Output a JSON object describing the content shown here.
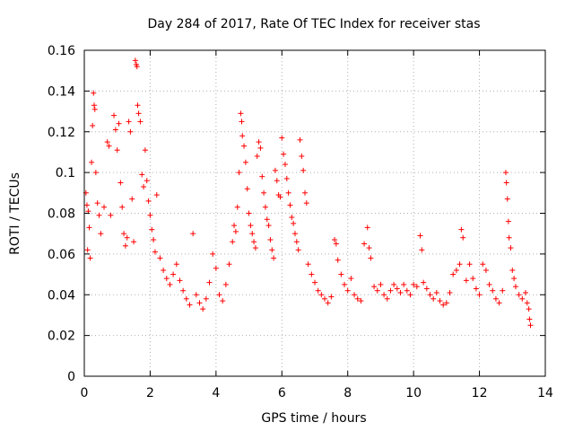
{
  "chart_data": {
    "type": "scatter",
    "title": "Day 284 of 2017, Rate Of TEC Index for receiver stas",
    "xlabel": "GPS time / hours",
    "ylabel": "ROTI / TECUs",
    "xlim": [
      0,
      14
    ],
    "ylim": [
      0,
      0.16
    ],
    "xticks": [
      0,
      2,
      4,
      6,
      8,
      10,
      12,
      14
    ],
    "xtick_labels": [
      "0",
      "2",
      "4",
      "6",
      "8",
      "10",
      "12",
      "14"
    ],
    "yticks": [
      0,
      0.02,
      0.04,
      0.06,
      0.08,
      0.1,
      0.12,
      0.14,
      0.16
    ],
    "ytick_labels": [
      "0",
      "0.02",
      "0.04",
      "0.06",
      "0.08",
      "0.1",
      "0.12",
      "0.14",
      "0.16"
    ],
    "grid": true,
    "marker": "plus",
    "color": "#ff0000",
    "series": [
      {
        "name": "stas",
        "points": [
          [
            0.05,
            0.09
          ],
          [
            0.08,
            0.084
          ],
          [
            0.12,
            0.081
          ],
          [
            0.15,
            0.073
          ],
          [
            0.22,
            0.105
          ],
          [
            0.28,
            0.139
          ],
          [
            0.3,
            0.133
          ],
          [
            0.32,
            0.131
          ],
          [
            0.25,
            0.123
          ],
          [
            0.35,
            0.1
          ],
          [
            0.1,
            0.062
          ],
          [
            0.18,
            0.058
          ],
          [
            0.4,
            0.085
          ],
          [
            0.45,
            0.079
          ],
          [
            0.5,
            0.07
          ],
          [
            0.6,
            0.083
          ],
          [
            0.7,
            0.115
          ],
          [
            0.75,
            0.113
          ],
          [
            0.8,
            0.079
          ],
          [
            0.9,
            0.128
          ],
          [
            0.95,
            0.121
          ],
          [
            1.0,
            0.111
          ],
          [
            1.05,
            0.124
          ],
          [
            1.1,
            0.095
          ],
          [
            1.15,
            0.083
          ],
          [
            1.2,
            0.07
          ],
          [
            1.25,
            0.064
          ],
          [
            1.3,
            0.068
          ],
          [
            1.35,
            0.125
          ],
          [
            1.4,
            0.12
          ],
          [
            1.45,
            0.087
          ],
          [
            1.5,
            0.066
          ],
          [
            1.55,
            0.155
          ],
          [
            1.58,
            0.153
          ],
          [
            1.6,
            0.152
          ],
          [
            1.62,
            0.133
          ],
          [
            1.65,
            0.129
          ],
          [
            1.7,
            0.125
          ],
          [
            1.75,
            0.099
          ],
          [
            1.8,
            0.093
          ],
          [
            1.85,
            0.111
          ],
          [
            1.9,
            0.096
          ],
          [
            1.95,
            0.086
          ],
          [
            2.0,
            0.079
          ],
          [
            2.05,
            0.072
          ],
          [
            2.1,
            0.067
          ],
          [
            2.15,
            0.061
          ],
          [
            2.2,
            0.089
          ],
          [
            2.3,
            0.058
          ],
          [
            2.4,
            0.052
          ],
          [
            2.5,
            0.048
          ],
          [
            2.6,
            0.045
          ],
          [
            2.7,
            0.05
          ],
          [
            2.8,
            0.055
          ],
          [
            2.9,
            0.047
          ],
          [
            3.0,
            0.042
          ],
          [
            3.1,
            0.038
          ],
          [
            3.2,
            0.035
          ],
          [
            3.3,
            0.07
          ],
          [
            3.4,
            0.04
          ],
          [
            3.5,
            0.036
          ],
          [
            3.6,
            0.033
          ],
          [
            3.7,
            0.038
          ],
          [
            3.8,
            0.046
          ],
          [
            3.9,
            0.06
          ],
          [
            4.0,
            0.053
          ],
          [
            4.1,
            0.04
          ],
          [
            4.2,
            0.037
          ],
          [
            4.3,
            0.045
          ],
          [
            4.4,
            0.055
          ],
          [
            4.5,
            0.066
          ],
          [
            4.55,
            0.074
          ],
          [
            4.6,
            0.071
          ],
          [
            4.65,
            0.083
          ],
          [
            4.7,
            0.1
          ],
          [
            4.75,
            0.129
          ],
          [
            4.78,
            0.125
          ],
          [
            4.8,
            0.118
          ],
          [
            4.85,
            0.113
          ],
          [
            4.9,
            0.105
          ],
          [
            4.95,
            0.092
          ],
          [
            5.0,
            0.08
          ],
          [
            5.05,
            0.074
          ],
          [
            5.1,
            0.07
          ],
          [
            5.15,
            0.066
          ],
          [
            5.2,
            0.063
          ],
          [
            5.25,
            0.108
          ],
          [
            5.3,
            0.115
          ],
          [
            5.35,
            0.112
          ],
          [
            5.4,
            0.098
          ],
          [
            5.45,
            0.09
          ],
          [
            5.5,
            0.083
          ],
          [
            5.55,
            0.077
          ],
          [
            5.6,
            0.074
          ],
          [
            5.65,
            0.067
          ],
          [
            5.7,
            0.062
          ],
          [
            5.75,
            0.058
          ],
          [
            5.8,
            0.101
          ],
          [
            5.85,
            0.096
          ],
          [
            5.9,
            0.089
          ],
          [
            5.95,
            0.088
          ],
          [
            6.0,
            0.117
          ],
          [
            6.05,
            0.109
          ],
          [
            6.1,
            0.104
          ],
          [
            6.15,
            0.097
          ],
          [
            6.2,
            0.09
          ],
          [
            6.25,
            0.084
          ],
          [
            6.3,
            0.078
          ],
          [
            6.35,
            0.075
          ],
          [
            6.4,
            0.07
          ],
          [
            6.45,
            0.066
          ],
          [
            6.5,
            0.062
          ],
          [
            6.55,
            0.116
          ],
          [
            6.6,
            0.108
          ],
          [
            6.65,
            0.101
          ],
          [
            6.7,
            0.09
          ],
          [
            6.75,
            0.085
          ],
          [
            6.8,
            0.055
          ],
          [
            6.9,
            0.05
          ],
          [
            7.0,
            0.046
          ],
          [
            7.1,
            0.042
          ],
          [
            7.2,
            0.04
          ],
          [
            7.3,
            0.038
          ],
          [
            7.4,
            0.036
          ],
          [
            7.5,
            0.039
          ],
          [
            7.6,
            0.067
          ],
          [
            7.65,
            0.065
          ],
          [
            7.7,
            0.057
          ],
          [
            7.8,
            0.05
          ],
          [
            7.9,
            0.045
          ],
          [
            8.0,
            0.042
          ],
          [
            8.1,
            0.048
          ],
          [
            8.2,
            0.04
          ],
          [
            8.3,
            0.038
          ],
          [
            8.4,
            0.037
          ],
          [
            8.5,
            0.065
          ],
          [
            8.6,
            0.073
          ],
          [
            8.65,
            0.063
          ],
          [
            8.7,
            0.058
          ],
          [
            8.8,
            0.044
          ],
          [
            8.9,
            0.042
          ],
          [
            9.0,
            0.045
          ],
          [
            9.1,
            0.04
          ],
          [
            9.2,
            0.038
          ],
          [
            9.3,
            0.042
          ],
          [
            9.4,
            0.045
          ],
          [
            9.5,
            0.043
          ],
          [
            9.6,
            0.041
          ],
          [
            9.7,
            0.045
          ],
          [
            9.8,
            0.042
          ],
          [
            9.9,
            0.04
          ],
          [
            10.0,
            0.045
          ],
          [
            10.1,
            0.044
          ],
          [
            10.2,
            0.069
          ],
          [
            10.25,
            0.062
          ],
          [
            10.3,
            0.046
          ],
          [
            10.4,
            0.043
          ],
          [
            10.5,
            0.04
          ],
          [
            10.6,
            0.038
          ],
          [
            10.7,
            0.041
          ],
          [
            10.8,
            0.037
          ],
          [
            10.9,
            0.035
          ],
          [
            11.0,
            0.036
          ],
          [
            11.1,
            0.041
          ],
          [
            11.2,
            0.05
          ],
          [
            11.3,
            0.052
          ],
          [
            11.4,
            0.055
          ],
          [
            11.45,
            0.072
          ],
          [
            11.5,
            0.068
          ],
          [
            11.6,
            0.047
          ],
          [
            11.7,
            0.055
          ],
          [
            11.8,
            0.048
          ],
          [
            11.9,
            0.043
          ],
          [
            12.0,
            0.04
          ],
          [
            12.1,
            0.055
          ],
          [
            12.2,
            0.052
          ],
          [
            12.3,
            0.045
          ],
          [
            12.4,
            0.042
          ],
          [
            12.5,
            0.038
          ],
          [
            12.6,
            0.036
          ],
          [
            12.7,
            0.042
          ],
          [
            12.8,
            0.1
          ],
          [
            12.82,
            0.095
          ],
          [
            12.85,
            0.087
          ],
          [
            12.88,
            0.076
          ],
          [
            12.9,
            0.068
          ],
          [
            12.95,
            0.063
          ],
          [
            13.0,
            0.052
          ],
          [
            13.05,
            0.048
          ],
          [
            13.1,
            0.044
          ],
          [
            13.2,
            0.04
          ],
          [
            13.3,
            0.038
          ],
          [
            13.4,
            0.041
          ],
          [
            13.45,
            0.036
          ],
          [
            13.5,
            0.033
          ],
          [
            13.52,
            0.028
          ],
          [
            13.55,
            0.025
          ]
        ]
      }
    ]
  }
}
